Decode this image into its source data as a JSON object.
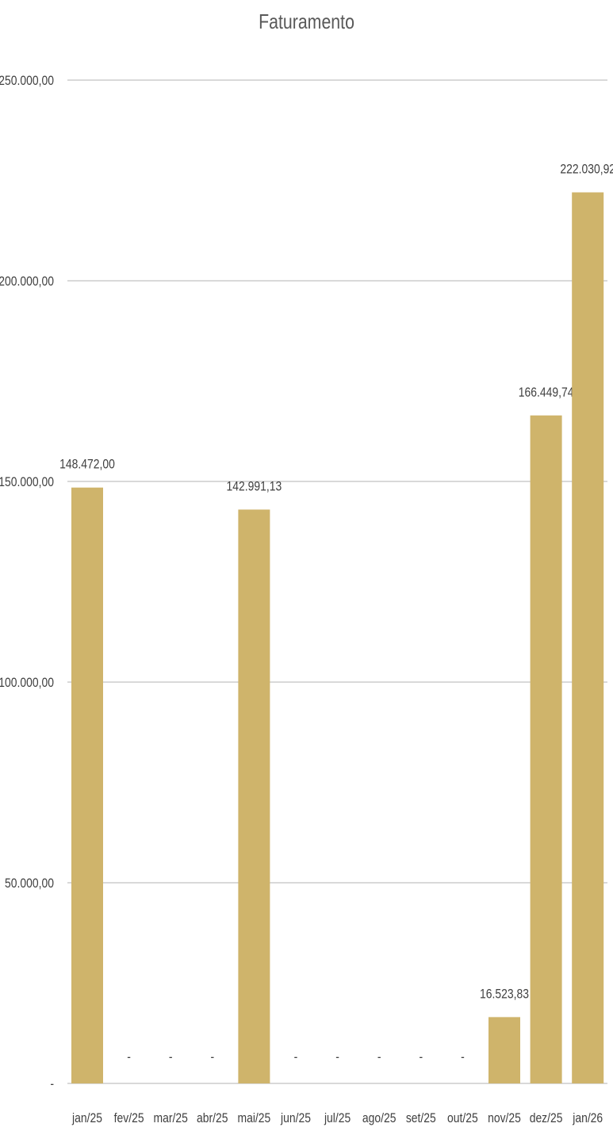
{
  "chart_data": {
    "type": "bar",
    "title": "Faturamento",
    "xlabel": "",
    "ylabel": "",
    "categories": [
      "jan/25",
      "fev/25",
      "mar/25",
      "abr/25",
      "mai/25",
      "jun/25",
      "jul/25",
      "ago/25",
      "set/25",
      "out/25",
      "nov/25",
      "dez/25",
      "jan/26"
    ],
    "values": [
      148472.0,
      0,
      0,
      0,
      142991.13,
      0,
      0,
      0,
      0,
      0,
      16523.83,
      166449.74,
      222030.92
    ],
    "data_labels": [
      "148.472,00",
      "-",
      "-",
      "-",
      "142.991,13",
      "-",
      "-",
      "-",
      "-",
      "-",
      "16.523,83",
      "166.449,74",
      "222.030,92"
    ],
    "ylim": [
      0,
      250000
    ],
    "y_ticks": [
      0,
      50000,
      100000,
      150000,
      200000,
      250000
    ],
    "y_tick_labels": [
      "-",
      "50.000,00",
      "100.000,00",
      "150.000,00",
      "200.000,00",
      "250.000,00"
    ],
    "grid": true,
    "legend": "none",
    "colors": {
      "bar": "#CFB46B",
      "grid": "#D9D9D9",
      "text": "#404040",
      "title": "#595959"
    }
  }
}
